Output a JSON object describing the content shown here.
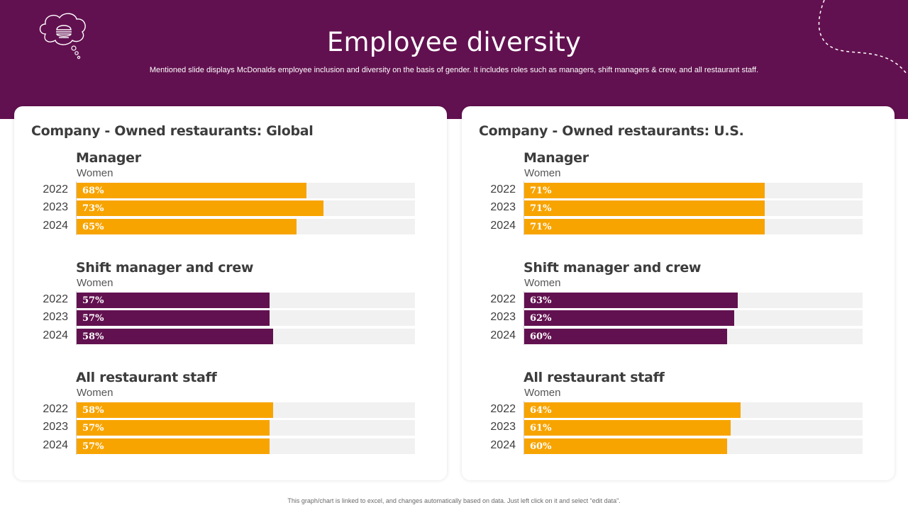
{
  "header": {
    "title": "Employee diversity",
    "subtitle": "Mentioned slide displays McDonalds employee inclusion and diversity on the basis of gender. It includes roles such as managers, shift managers & crew, and all restaurant staff."
  },
  "footnote": "This graph/chart is linked to excel, and changes automatically based on data. Just left click on it and select “edit data”.",
  "colors": {
    "brand": "#621150",
    "accent": "#f7a400",
    "track": "#f1f1f1"
  },
  "chart_data": [
    {
      "type": "bar",
      "title": "Company - Owned restaurants: Global",
      "xlim": [
        0,
        100
      ],
      "groups": [
        {
          "title": "Manager",
          "series_name": "Women",
          "color": "#f7a400",
          "categories": [
            "2022",
            "2023",
            "2024"
          ],
          "values": [
            68,
            73,
            65
          ],
          "labels": [
            "68%",
            "73%",
            "65%"
          ]
        },
        {
          "title": "Shift manager and crew",
          "series_name": "Women",
          "color": "#621150",
          "categories": [
            "2022",
            "2023",
            "2024"
          ],
          "values": [
            57,
            57,
            58
          ],
          "labels": [
            "57%",
            "57%",
            "58%"
          ]
        },
        {
          "title": "All restaurant staff",
          "series_name": "Women",
          "color": "#f7a400",
          "categories": [
            "2022",
            "2023",
            "2024"
          ],
          "values": [
            58,
            57,
            57
          ],
          "labels": [
            "58%",
            "57%",
            "57%"
          ]
        }
      ]
    },
    {
      "type": "bar",
      "title": "Company - Owned restaurants: U.S.",
      "xlim": [
        0,
        100
      ],
      "groups": [
        {
          "title": "Manager",
          "series_name": "Women",
          "color": "#f7a400",
          "categories": [
            "2022",
            "2023",
            "2024"
          ],
          "values": [
            71,
            71,
            71
          ],
          "labels": [
            "71%",
            "71%",
            "71%"
          ]
        },
        {
          "title": "Shift manager and crew",
          "series_name": "Women",
          "color": "#621150",
          "categories": [
            "2022",
            "2023",
            "2024"
          ],
          "values": [
            63,
            62,
            60
          ],
          "labels": [
            "63%",
            "62%",
            "60%"
          ]
        },
        {
          "title": "All restaurant staff",
          "series_name": "Women",
          "color": "#f7a400",
          "categories": [
            "2022",
            "2023",
            "2024"
          ],
          "values": [
            64,
            61,
            60
          ],
          "labels": [
            "64%",
            "61%",
            "60%"
          ]
        }
      ]
    }
  ]
}
